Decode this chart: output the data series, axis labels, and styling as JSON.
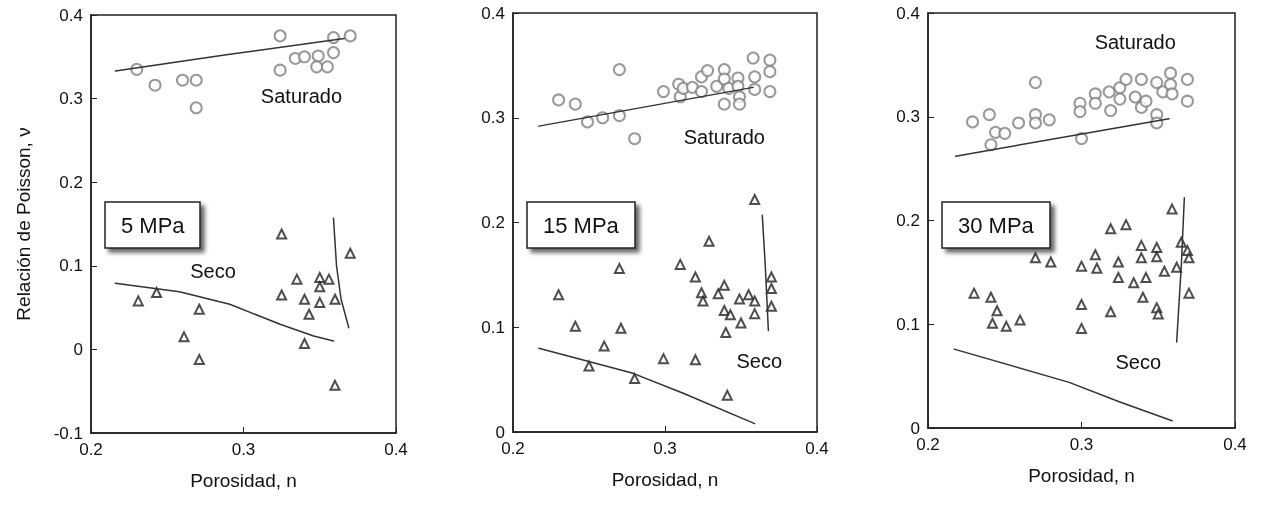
{
  "chart_data": [
    {
      "type": "scatter",
      "title": "5 MPa",
      "xlabel": "Porosidad, n",
      "ylabel": "Relación de Poisson, ν",
      "xlim": [
        0.2,
        0.4
      ],
      "xticks": [
        0.2,
        0.3,
        0.4
      ],
      "ylim": [
        -0.1,
        0.4
      ],
      "yticks": [
        -0.1,
        0,
        0.1,
        0.2,
        0.3,
        0.4
      ],
      "annotations": [
        "Saturado",
        "Seco"
      ],
      "series": [
        {
          "type": "scatter",
          "marker": "circle",
          "color": "#808080",
          "x": [
            0.23,
            0.242,
            0.26,
            0.269,
            0.269,
            0.324,
            0.324,
            0.334,
            0.34,
            0.349,
            0.348,
            0.355,
            0.359,
            0.359,
            0.37
          ],
          "values": [
            0.335,
            0.316,
            0.322,
            0.322,
            0.289,
            0.375,
            0.334,
            0.348,
            0.35,
            0.351,
            0.338,
            0.338,
            0.373,
            0.355,
            0.375
          ]
        },
        {
          "type": "line",
          "marker": "none",
          "color": "#333333",
          "x": [
            0.216,
            0.291,
            0.366
          ],
          "values": [
            0.333,
            0.353,
            0.372
          ]
        },
        {
          "type": "scatter",
          "marker": "triangle",
          "color": "#222222",
          "x": [
            0.231,
            0.243,
            0.271,
            0.261,
            0.271,
            0.325,
            0.325,
            0.335,
            0.34,
            0.343,
            0.34,
            0.35,
            0.35,
            0.35,
            0.356,
            0.36,
            0.37,
            0.36
          ],
          "values": [
            0.058,
            0.068,
            0.048,
            0.015,
            -0.012,
            0.138,
            0.065,
            0.084,
            0.06,
            0.042,
            0.007,
            0.086,
            0.075,
            0.056,
            0.084,
            0.06,
            0.115,
            -0.043
          ]
        },
        {
          "type": "line",
          "marker": "none",
          "color": "#333333",
          "x": [
            0.216,
            0.258,
            0.291,
            0.324,
            0.346,
            0.359
          ],
          "values": [
            0.079,
            0.069,
            0.054,
            0.03,
            0.016,
            0.01
          ]
        },
        {
          "type": "line",
          "marker": "none",
          "color": "#333333",
          "x": [
            0.359,
            0.361,
            0.364,
            0.369
          ],
          "values": [
            0.157,
            0.1,
            0.06,
            0.026
          ]
        }
      ]
    },
    {
      "type": "scatter",
      "title": "15 MPa",
      "xlabel": "Porosidad, n",
      "xlim": [
        0.2,
        0.4
      ],
      "xticks": [
        0.2,
        0.3,
        0.4
      ],
      "ylim": [
        0,
        0.4
      ],
      "yticks": [
        0,
        0.1,
        0.2,
        0.3,
        0.4
      ],
      "annotations": [
        "Saturado",
        "Seco"
      ],
      "series": [
        {
          "type": "scatter",
          "marker": "circle",
          "color": "#808080",
          "x": [
            0.23,
            0.241,
            0.249,
            0.259,
            0.27,
            0.27,
            0.28,
            0.299,
            0.309,
            0.31,
            0.312,
            0.318,
            0.324,
            0.324,
            0.328,
            0.334,
            0.339,
            0.339,
            0.339,
            0.342,
            0.348,
            0.348,
            0.349,
            0.349,
            0.358,
            0.359,
            0.359,
            0.369,
            0.369,
            0.369
          ],
          "values": [
            0.317,
            0.313,
            0.296,
            0.3,
            0.302,
            0.346,
            0.28,
            0.325,
            0.332,
            0.32,
            0.328,
            0.329,
            0.339,
            0.325,
            0.345,
            0.33,
            0.346,
            0.337,
            0.313,
            0.328,
            0.338,
            0.33,
            0.32,
            0.313,
            0.357,
            0.339,
            0.327,
            0.355,
            0.344,
            0.325
          ]
        },
        {
          "type": "line",
          "marker": "none",
          "color": "#333333",
          "x": [
            0.217,
            0.358
          ],
          "values": [
            0.292,
            0.329
          ]
        },
        {
          "type": "scatter",
          "marker": "triangle",
          "color": "#222222",
          "x": [
            0.23,
            0.241,
            0.25,
            0.26,
            0.27,
            0.271,
            0.28,
            0.299,
            0.31,
            0.32,
            0.32,
            0.324,
            0.325,
            0.329,
            0.335,
            0.339,
            0.339,
            0.343,
            0.34,
            0.349,
            0.35,
            0.355,
            0.359,
            0.359,
            0.359,
            0.37,
            0.37,
            0.37,
            0.341
          ],
          "values": [
            0.131,
            0.101,
            0.063,
            0.082,
            0.156,
            0.099,
            0.051,
            0.07,
            0.16,
            0.069,
            0.148,
            0.133,
            0.125,
            0.182,
            0.132,
            0.14,
            0.116,
            0.112,
            0.095,
            0.127,
            0.104,
            0.131,
            0.125,
            0.113,
            0.222,
            0.148,
            0.137,
            0.12,
            0.035
          ]
        },
        {
          "type": "line",
          "marker": "none",
          "color": "#333333",
          "x": [
            0.217,
            0.279,
            0.312,
            0.359
          ],
          "values": [
            0.08,
            0.056,
            0.037,
            0.008
          ]
        },
        {
          "type": "line",
          "marker": "none",
          "color": "#333333",
          "x": [
            0.364,
            0.366,
            0.368
          ],
          "values": [
            0.207,
            0.158,
            0.097
          ]
        }
      ]
    },
    {
      "type": "scatter",
      "title": "30 MPa",
      "xlabel": "Porosidad, n",
      "xlim": [
        0.2,
        0.4
      ],
      "xticks": [
        0.2,
        0.3,
        0.4
      ],
      "ylim": [
        0,
        0.4
      ],
      "yticks": [
        0,
        0.1,
        0.2,
        0.3,
        0.4
      ],
      "annotations": [
        "Saturado",
        "Seco"
      ],
      "series": [
        {
          "type": "scatter",
          "marker": "circle",
          "color": "#808080",
          "x": [
            0.229,
            0.24,
            0.244,
            0.25,
            0.241,
            0.259,
            0.27,
            0.27,
            0.27,
            0.279,
            0.299,
            0.299,
            0.3,
            0.309,
            0.309,
            0.318,
            0.319,
            0.325,
            0.325,
            0.329,
            0.335,
            0.339,
            0.339,
            0.342,
            0.349,
            0.349,
            0.349,
            0.353,
            0.358,
            0.358,
            0.359,
            0.369,
            0.369
          ],
          "values": [
            0.295,
            0.302,
            0.285,
            0.284,
            0.273,
            0.294,
            0.333,
            0.302,
            0.294,
            0.297,
            0.313,
            0.305,
            0.279,
            0.322,
            0.313,
            0.324,
            0.306,
            0.328,
            0.317,
            0.336,
            0.319,
            0.336,
            0.309,
            0.315,
            0.333,
            0.302,
            0.294,
            0.324,
            0.342,
            0.331,
            0.322,
            0.336,
            0.315
          ]
        },
        {
          "type": "line",
          "marker": "none",
          "color": "#333333",
          "x": [
            0.218,
            0.357
          ],
          "values": [
            0.262,
            0.298
          ]
        },
        {
          "type": "scatter",
          "marker": "triangle",
          "color": "#222222",
          "x": [
            0.23,
            0.241,
            0.245,
            0.242,
            0.251,
            0.26,
            0.27,
            0.28,
            0.3,
            0.3,
            0.3,
            0.309,
            0.31,
            0.319,
            0.319,
            0.324,
            0.324,
            0.329,
            0.334,
            0.339,
            0.339,
            0.34,
            0.342,
            0.349,
            0.349,
            0.349,
            0.35,
            0.354,
            0.359,
            0.362,
            0.365,
            0.369,
            0.37,
            0.37
          ],
          "values": [
            0.13,
            0.126,
            0.113,
            0.101,
            0.098,
            0.104,
            0.164,
            0.16,
            0.156,
            0.119,
            0.096,
            0.167,
            0.154,
            0.192,
            0.112,
            0.16,
            0.145,
            0.196,
            0.14,
            0.176,
            0.164,
            0.126,
            0.145,
            0.174,
            0.165,
            0.116,
            0.11,
            0.151,
            0.211,
            0.155,
            0.179,
            0.171,
            0.164,
            0.13
          ]
        },
        {
          "type": "line",
          "marker": "none",
          "color": "#333333",
          "x": [
            0.217,
            0.292,
            0.325,
            0.359
          ],
          "values": [
            0.076,
            0.044,
            0.025,
            0.007
          ]
        },
        {
          "type": "line",
          "marker": "none",
          "color": "#333333",
          "x": [
            0.367,
            0.365,
            0.362
          ],
          "values": [
            0.222,
            0.156,
            0.083
          ]
        }
      ]
    }
  ]
}
